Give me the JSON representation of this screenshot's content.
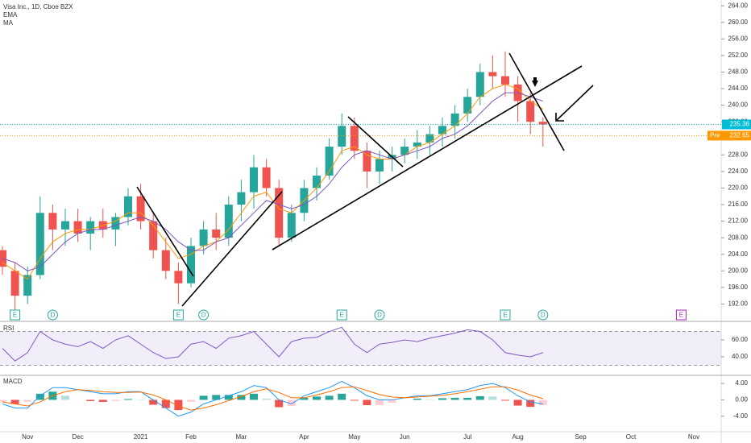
{
  "chart_data": [
    {
      "type": "candlestick",
      "title": "Visa Inc., 1D, Cboe BZX",
      "categories": [
        null,
        null,
        "Nov",
        null,
        null,
        null,
        "Dec",
        null,
        null,
        null,
        null,
        "2021",
        null,
        null,
        null,
        "Feb",
        null,
        null,
        null,
        "Mar",
        null,
        null,
        null,
        null,
        "Apr",
        null,
        null,
        null,
        "May",
        null,
        null,
        null,
        "Jun",
        null,
        null,
        null,
        null,
        "Jul",
        null,
        null,
        null,
        "Aug",
        null,
        null,
        null,
        null,
        "Sep",
        null,
        null,
        null,
        "Oct",
        null,
        null,
        null,
        null,
        "Nov",
        null
      ],
      "open": [
        205,
        200,
        194,
        199,
        214,
        210,
        212,
        209,
        212,
        210,
        213,
        218,
        212,
        205,
        200,
        197,
        206,
        210,
        208,
        216,
        219,
        225,
        220,
        208,
        214,
        220,
        223,
        230,
        235,
        229,
        224,
        227,
        228,
        230,
        231,
        233,
        235,
        238,
        242,
        248,
        247,
        245,
        241,
        236,
        null,
        null,
        null,
        null,
        null,
        null,
        null,
        null,
        null,
        null,
        null,
        null,
        null
      ],
      "high": [
        206,
        202,
        201,
        218,
        216,
        215,
        215,
        213,
        215,
        214,
        220,
        221,
        214,
        208,
        202,
        208,
        212,
        214,
        218,
        222,
        228,
        227,
        222,
        216,
        222,
        225,
        232,
        238,
        237,
        231,
        229,
        230,
        232,
        234,
        235,
        237,
        240,
        244,
        250,
        252,
        253,
        247,
        243,
        237,
        null,
        null,
        null,
        null,
        null,
        null,
        null,
        null,
        null,
        null,
        null,
        null,
        null
      ],
      "low": [
        199,
        190,
        192,
        198,
        205,
        206,
        207,
        205,
        208,
        206,
        211,
        210,
        203,
        198,
        192,
        196,
        204,
        205,
        206,
        212,
        215,
        218,
        206,
        207,
        212,
        217,
        222,
        228,
        227,
        220,
        221,
        224,
        226,
        227,
        228,
        230,
        232,
        236,
        240,
        244,
        242,
        236,
        233,
        230,
        null,
        null,
        null,
        null,
        null,
        null,
        null,
        null,
        null,
        null,
        null,
        null,
        null
      ],
      "close": [
        201,
        194,
        199,
        214,
        210,
        212,
        209,
        212,
        210,
        213,
        218,
        212,
        205,
        200,
        197,
        206,
        210,
        208,
        216,
        219,
        225,
        220,
        208,
        214,
        220,
        223,
        230,
        235,
        229,
        224,
        227,
        228,
        230,
        231,
        233,
        235,
        238,
        242,
        248,
        247,
        245,
        241,
        236,
        235.36,
        null,
        null,
        null,
        null,
        null,
        null,
        null,
        null,
        null,
        null,
        null,
        null,
        null
      ],
      "up_color": "#26a69a",
      "down_color": "#ef5350",
      "series": [
        {
          "name": "EMA",
          "color": "#ff9800",
          "values": [
            202,
            200,
            198,
            203,
            207,
            209,
            210,
            210,
            211,
            212,
            214,
            214,
            211,
            207,
            203,
            204,
            206,
            207,
            210,
            214,
            218,
            219,
            215,
            214,
            217,
            220,
            224,
            229,
            230,
            228,
            227,
            227,
            228,
            230,
            231,
            233,
            235,
            238,
            242,
            244,
            245,
            244,
            241,
            239,
            null,
            null,
            null,
            null,
            null,
            null,
            null,
            null,
            null,
            null,
            null,
            null,
            null
          ]
        },
        {
          "name": "MA",
          "color": "#7e57c2",
          "values": [
            203,
            202,
            200,
            201,
            204,
            207,
            209,
            210,
            210,
            211,
            212,
            213,
            212,
            210,
            207,
            205,
            205,
            207,
            208,
            211,
            214,
            217,
            216,
            215,
            216,
            218,
            221,
            225,
            228,
            229,
            228,
            227,
            228,
            229,
            230,
            232,
            233,
            235,
            238,
            241,
            243,
            243,
            242,
            241,
            null,
            null,
            null,
            null,
            null,
            null,
            null,
            null,
            null,
            null,
            null,
            null,
            null
          ]
        }
      ],
      "events": [
        null,
        "E",
        null,
        null,
        "D",
        null,
        null,
        null,
        null,
        null,
        null,
        null,
        null,
        null,
        "E",
        null,
        "D",
        null,
        null,
        null,
        null,
        null,
        null,
        null,
        null,
        null,
        null,
        "E",
        null,
        null,
        "D",
        null,
        null,
        null,
        null,
        null,
        null,
        null,
        null,
        null,
        "E",
        null,
        null,
        "D",
        null,
        null,
        null,
        null,
        null,
        null,
        null,
        null,
        null,
        null,
        "E",
        null,
        null
      ],
      "last_price": 235.36,
      "last_color": "#00bcd4",
      "pre_market": {
        "name": "Pre",
        "value": 232.65,
        "color": "#ff9800"
      },
      "ylim": [
        188,
        265.4
      ],
      "yticks": [
        {
          "value": 192,
          "label": "192.00"
        },
        {
          "value": 196,
          "label": "196.00"
        },
        {
          "value": 200,
          "label": "200.00"
        },
        {
          "value": 204,
          "label": "204.00"
        },
        {
          "value": 208,
          "label": "208.00"
        },
        {
          "value": 212,
          "label": "212.00"
        },
        {
          "value": 216,
          "label": "216.00"
        },
        {
          "value": 220,
          "label": "220.00"
        },
        {
          "value": 224,
          "label": "224.00"
        },
        {
          "value": 228,
          "label": "228.00"
        },
        {
          "value": 232,
          "label": "232.00"
        },
        {
          "value": 236,
          "label": "236.00"
        },
        {
          "value": 240,
          "label": "240.00"
        },
        {
          "value": 244,
          "label": "244.00"
        },
        {
          "value": 248,
          "label": "248.00"
        },
        {
          "value": 252,
          "label": "252.00"
        },
        {
          "value": 256,
          "label": "256.00"
        },
        {
          "value": 260,
          "label": "260.00"
        },
        {
          "value": 264,
          "label": "264.00"
        }
      ],
      "grid": false
    },
    {
      "type": "line",
      "title": "RSI",
      "series": [
        {
          "color": "#7e57c2",
          "values": [
            50,
            35,
            45,
            70,
            60,
            55,
            52,
            58,
            50,
            60,
            65,
            55,
            45,
            38,
            40,
            55,
            58,
            50,
            62,
            65,
            70,
            55,
            40,
            58,
            62,
            63,
            70,
            75,
            55,
            45,
            55,
            57,
            60,
            58,
            62,
            65,
            68,
            72,
            70,
            60,
            45,
            42,
            40,
            45,
            null,
            null,
            null,
            null,
            null,
            null,
            null,
            null,
            null,
            null,
            null,
            null,
            null
          ]
        }
      ],
      "bands": [
        30,
        70
      ],
      "band_color": "#7e57c2",
      "ylim": [
        19,
        81
      ],
      "yticks": [
        {
          "value": 40,
          "label": "40.00"
        },
        {
          "value": 60,
          "label": "60.00"
        }
      ]
    },
    {
      "type": "macd",
      "title": "MACD",
      "series": [
        {
          "color": "#2196f3",
          "values": [
            -1,
            -2,
            -2,
            1,
            3,
            3,
            2.5,
            2,
            1.5,
            1.5,
            2,
            2,
            0,
            -2,
            -4,
            -3,
            -1,
            0,
            1,
            2,
            3.5,
            3,
            0,
            -1,
            1,
            2,
            3,
            4.5,
            3,
            1,
            0,
            0,
            0.5,
            1,
            1,
            1.5,
            2,
            2.5,
            3.5,
            4,
            3,
            1,
            -0.5,
            -1,
            null,
            null,
            null,
            null,
            null,
            null,
            null,
            null,
            null,
            null,
            null,
            null,
            null
          ]
        },
        {
          "color": "#ff6d00",
          "values": [
            -0.5,
            -1,
            -1.5,
            -0.5,
            1,
            2,
            2.5,
            2.3,
            2,
            1.8,
            1.8,
            1.9,
            1.2,
            0,
            -1.5,
            -2.5,
            -2,
            -1.2,
            -0.2,
            0.8,
            2,
            2.7,
            1.8,
            0.5,
            0.5,
            1.2,
            2,
            3,
            3.2,
            2.3,
            1.3,
            0.7,
            0.5,
            0.7,
            0.9,
            1.1,
            1.5,
            2,
            2.6,
            3.2,
            3.2,
            2.4,
            1.2,
            0.3,
            null,
            null,
            null,
            null,
            null,
            null,
            null,
            null,
            null,
            null,
            null,
            null,
            null
          ]
        }
      ],
      "histogram": [
        -0.5,
        -1,
        -0.5,
        1.5,
        2,
        1,
        0,
        -0.3,
        -0.5,
        -0.3,
        0.2,
        0.1,
        -1.2,
        -2,
        -2.5,
        -0.5,
        1,
        1.2,
        1.2,
        1.2,
        1.5,
        0.3,
        -1.8,
        -1.5,
        0.5,
        0.8,
        1,
        1.5,
        -0.2,
        -1.3,
        -1.3,
        -0.7,
        0,
        0.3,
        0.1,
        0.4,
        0.5,
        0.5,
        0.9,
        0.8,
        -0.2,
        -1.4,
        -1.7,
        -1.3,
        null,
        null,
        null,
        null,
        null,
        null,
        null,
        null,
        null,
        null,
        null,
        null,
        null
      ],
      "histogram_colors": [
        "#26a69a",
        "#b2dfdb",
        "#ef5350",
        "#ffcdd2"
      ],
      "ylim": [
        -7.6,
        5.8
      ],
      "yticks": [
        {
          "value": -4,
          "label": "-4.00"
        },
        {
          "value": 0,
          "label": "0.00"
        },
        {
          "value": 4,
          "label": "4.00"
        }
      ]
    }
  ]
}
